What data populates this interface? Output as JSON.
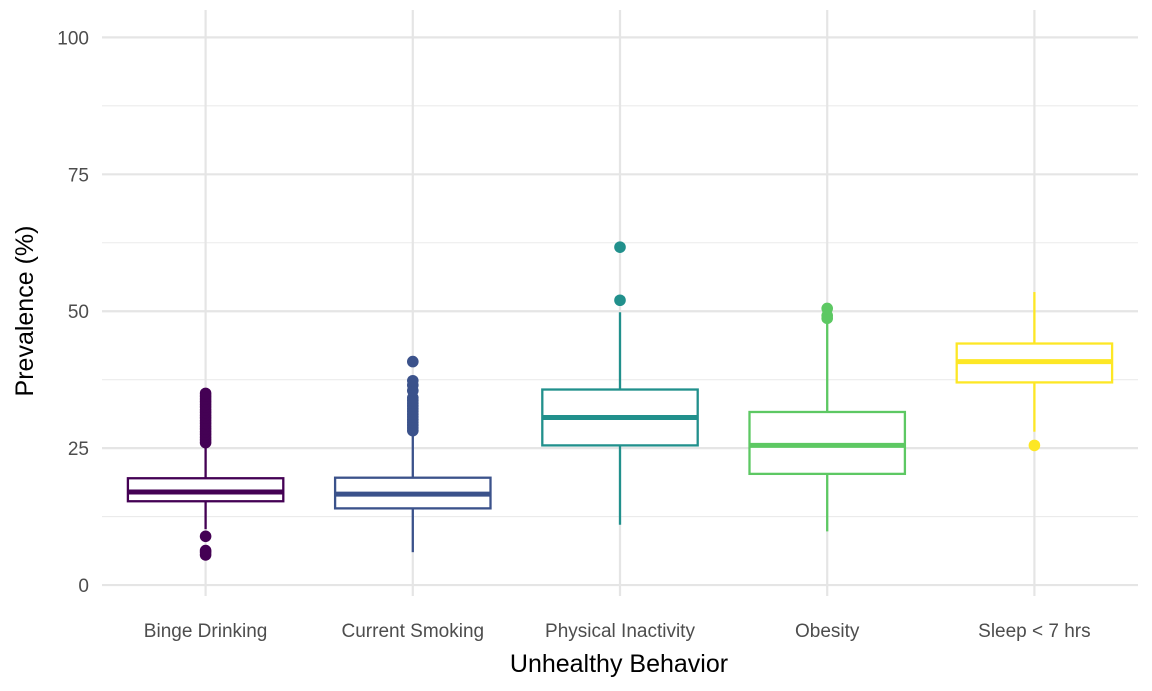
{
  "chart_data": {
    "type": "boxplot",
    "title": "",
    "xlabel": "Unhealthy Behavior",
    "ylabel": "Prevalence (%)",
    "ylim": [
      -2,
      105
    ],
    "yticks": [
      0,
      25,
      50,
      75,
      100
    ],
    "grid": true,
    "legend": "none",
    "categories": [
      "Binge Drinking",
      "Current Smoking",
      "Physical Inactivity",
      "Obesity",
      "Sleep < 7 hrs"
    ],
    "series": [
      {
        "category": "Binge Drinking",
        "color": "#440154",
        "whisker_low": 10.2,
        "q1": 15.3,
        "median": 17.0,
        "q3": 19.5,
        "whisker_high": 25.8,
        "outliers": [
          5.5,
          6.0,
          6.3,
          8.9,
          26.0,
          26.5,
          27.0,
          27.5,
          28.0,
          28.5,
          29.0,
          29.5,
          30.0,
          30.5,
          31.0,
          31.5,
          32.0,
          32.5,
          33.0,
          33.5,
          34.0,
          34.5,
          35.0
        ]
      },
      {
        "category": "Current Smoking",
        "color": "#3B528B",
        "whisker_low": 6.0,
        "q1": 14.0,
        "median": 16.6,
        "q3": 19.6,
        "whisker_high": 28.0,
        "outliers": [
          28.2,
          28.7,
          29.2,
          29.7,
          30.2,
          30.7,
          31.2,
          31.7,
          32.2,
          32.7,
          33.2,
          33.7,
          34.2,
          35.5,
          36.5,
          37.3,
          40.8
        ]
      },
      {
        "category": "Physical Inactivity",
        "color": "#21908C",
        "whisker_low": 11.0,
        "q1": 25.5,
        "median": 30.6,
        "q3": 35.7,
        "whisker_high": 49.8,
        "outliers": [
          52.0,
          61.7
        ]
      },
      {
        "category": "Obesity",
        "color": "#5DC863",
        "whisker_low": 9.8,
        "q1": 20.3,
        "median": 25.5,
        "q3": 31.6,
        "whisker_high": 48.2,
        "outliers": [
          48.7,
          49.2,
          50.5
        ]
      },
      {
        "category": "Sleep < 7 hrs",
        "color": "#FDE725",
        "whisker_low": 28.0,
        "q1": 37.0,
        "median": 40.8,
        "q3": 44.1,
        "whisker_high": 53.5,
        "outliers": [
          25.5
        ]
      }
    ]
  }
}
